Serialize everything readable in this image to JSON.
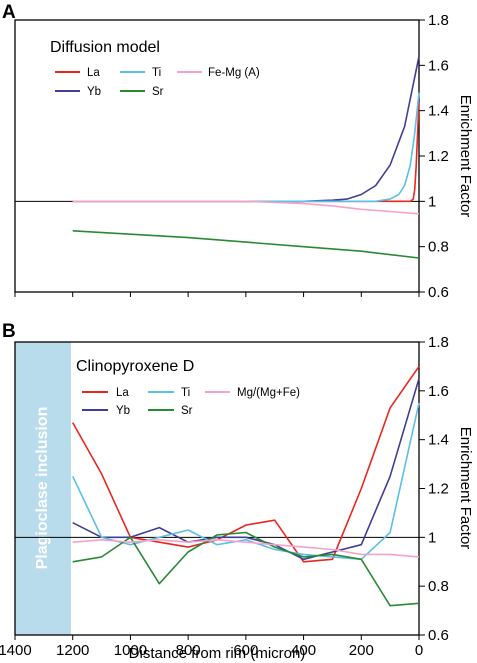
{
  "colors": {
    "La": "#e8271f",
    "Yb": "#3f3f95",
    "Ti": "#5bbfe6",
    "Sr": "#2a8a34",
    "FeMg": "#f4a3c8",
    "inclusion_bg": "#b9dcec",
    "inclusion_text": "#ffffff"
  },
  "labels": {
    "xlabel": "Distance from rim (micron)",
    "ylabel": "Enrichment Factor"
  },
  "chart_data": [
    {
      "panel": "A",
      "type": "line",
      "title": "Diffusion model",
      "xlim": [
        1400,
        0
      ],
      "ylim": [
        0.6,
        1.8
      ],
      "yticks": [
        "0.6",
        "0.8",
        "1",
        "1.2",
        "1.4",
        "1.6",
        "1.8"
      ],
      "xticks": [
        1400,
        1200,
        1000,
        800,
        600,
        400,
        200,
        0
      ],
      "reference_line": 1,
      "series": [
        {
          "name": "La",
          "x": [
            1200,
            100,
            50,
            30,
            20,
            15,
            10,
            5,
            0
          ],
          "y": [
            1.0,
            1.0,
            1.0,
            1.0,
            1.01,
            1.05,
            1.15,
            1.3,
            1.44
          ]
        },
        {
          "name": "Yb",
          "x": [
            1200,
            400,
            300,
            250,
            200,
            150,
            100,
            50,
            0
          ],
          "y": [
            1.0,
            1.0,
            1.005,
            1.01,
            1.03,
            1.07,
            1.16,
            1.33,
            1.64
          ]
        },
        {
          "name": "Ti",
          "x": [
            1200,
            200,
            150,
            100,
            70,
            50,
            30,
            15,
            0
          ],
          "y": [
            1.0,
            1.0,
            1.0,
            1.01,
            1.03,
            1.07,
            1.16,
            1.3,
            1.48
          ]
        },
        {
          "name": "Sr",
          "x": [
            1200,
            1000,
            800,
            600,
            400,
            200,
            0
          ],
          "y": [
            0.87,
            0.855,
            0.84,
            0.82,
            0.8,
            0.78,
            0.75
          ]
        },
        {
          "name": "Fe-Mg (A)",
          "x": [
            1200,
            600,
            400,
            300,
            200,
            100,
            0
          ],
          "y": [
            1.0,
            1.0,
            0.99,
            0.98,
            0.965,
            0.955,
            0.945
          ]
        }
      ]
    },
    {
      "panel": "B",
      "type": "line",
      "title": "Clinopyroxene D",
      "annotation": "Plagioclase inclusion",
      "xlim": [
        1400,
        0
      ],
      "ylim": [
        0.6,
        1.8
      ],
      "yticks": [
        "0.6",
        "0.8",
        "1",
        "1.2",
        "1.4",
        "1.6",
        "1.8"
      ],
      "xticks": [
        1400,
        1200,
        1000,
        800,
        600,
        400,
        200,
        0
      ],
      "reference_line": 1,
      "series": [
        {
          "name": "La",
          "x": [
            1200,
            1100,
            1000,
            900,
            800,
            700,
            600,
            500,
            400,
            300,
            200,
            100,
            0
          ],
          "y": [
            1.47,
            1.26,
            1.0,
            0.98,
            0.96,
            0.99,
            1.05,
            1.07,
            0.9,
            0.91,
            1.2,
            1.53,
            1.7
          ]
        },
        {
          "name": "Yb",
          "x": [
            1200,
            1100,
            1000,
            900,
            800,
            700,
            600,
            500,
            400,
            300,
            200,
            100,
            0
          ],
          "y": [
            1.06,
            1.0,
            1.0,
            1.04,
            0.98,
            1.0,
            1.0,
            0.97,
            0.91,
            0.94,
            0.97,
            1.25,
            1.65
          ]
        },
        {
          "name": "Ti",
          "x": [
            1200,
            1100,
            1000,
            900,
            800,
            700,
            600,
            500,
            400,
            300,
            200,
            100,
            0
          ],
          "y": [
            1.25,
            1.0,
            0.97,
            1.0,
            1.03,
            0.97,
            0.99,
            0.95,
            0.93,
            0.92,
            0.91,
            1.02,
            1.55
          ]
        },
        {
          "name": "Sr",
          "x": [
            1200,
            1100,
            1000,
            900,
            800,
            700,
            600,
            500,
            400,
            300,
            200,
            100,
            0
          ],
          "y": [
            0.9,
            0.92,
            1.0,
            0.81,
            0.94,
            1.01,
            1.02,
            0.96,
            0.92,
            0.93,
            0.91,
            0.72,
            0.73
          ]
        },
        {
          "name": "Mg/(Mg+Fe)",
          "x": [
            1200,
            1100,
            1000,
            900,
            800,
            700,
            600,
            500,
            400,
            300,
            200,
            100,
            0
          ],
          "y": [
            0.98,
            0.99,
            0.98,
            0.99,
            0.98,
            0.99,
            0.98,
            0.97,
            0.96,
            0.95,
            0.93,
            0.93,
            0.92
          ]
        }
      ]
    }
  ]
}
